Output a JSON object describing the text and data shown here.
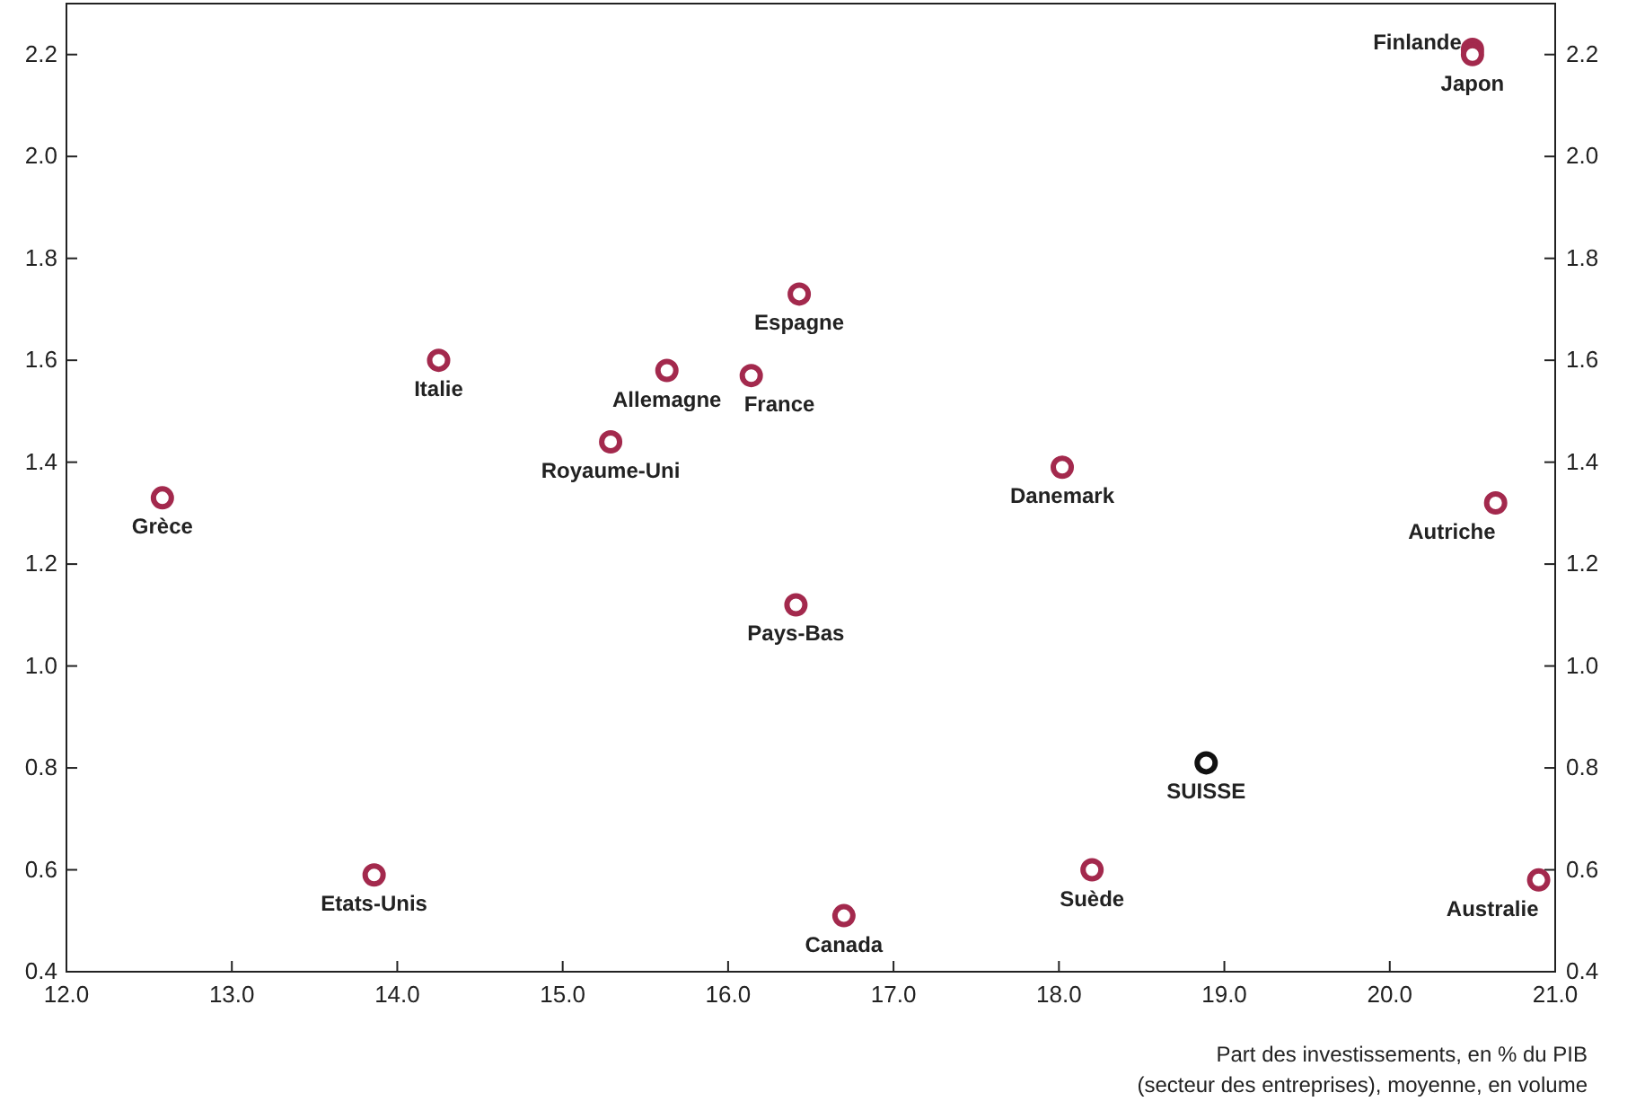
{
  "chart_data": {
    "type": "scatter",
    "xlabel": "Part des investissements, en % du PIB\n(secteur des entreprises), moyenne, en volume",
    "xlim": [
      12,
      21
    ],
    "xticks": [
      {
        "value": 12,
        "label": "12.0"
      },
      {
        "value": 13,
        "label": "13.0"
      },
      {
        "value": 14,
        "label": "14.0"
      },
      {
        "value": 15,
        "label": "15.0"
      },
      {
        "value": 16,
        "label": "16.0"
      },
      {
        "value": 17,
        "label": "17.0"
      },
      {
        "value": 18,
        "label": "18.0"
      },
      {
        "value": 19,
        "label": "19.0"
      },
      {
        "value": 20,
        "label": "20.0"
      },
      {
        "value": 21,
        "label": "21.0"
      }
    ],
    "ylim": [
      0.4,
      2.3
    ],
    "yticks": [
      0.4,
      0.6,
      0.8,
      {
        "value": 1,
        "label": "1.0"
      },
      1.2,
      1.4,
      1.6,
      1.8,
      {
        "value": 2,
        "label": "2.0"
      },
      2.2
    ],
    "y2lim": [
      0.4,
      2.3
    ],
    "y2ticks": [
      0.4,
      0.6,
      0.8,
      {
        "value": 1,
        "label": "1.0"
      },
      1.2,
      1.4,
      1.6,
      1.8,
      {
        "value": 2,
        "label": "2.0"
      },
      2.2
    ],
    "marker": "circle",
    "grid": false,
    "series": [
      {
        "color": "#a3294d",
        "x": [
          20.5,
          20.5,
          12.58,
          14.25,
          15.63,
          15.29,
          16.43,
          16.14,
          16.41,
          18.02,
          20.64,
          13.86,
          16.7,
          18.2,
          20.9
        ],
        "values": [
          2.21,
          2.2,
          1.33,
          1.6,
          1.58,
          1.44,
          1.73,
          1.57,
          1.12,
          1.39,
          1.32,
          0.59,
          0.51,
          0.6,
          0.58
        ]
      },
      {
        "color": "#111111",
        "x": [
          18.89
        ],
        "values": [
          0.81
        ]
      }
    ],
    "annotations": [
      {
        "text": "Finlande",
        "x": 20.5,
        "y": 2.21
      },
      {
        "text": "Japon",
        "x": 20.5,
        "y": 2.2
      },
      {
        "text": "Grèce",
        "x": 12.58,
        "y": 1.33
      },
      {
        "text": "Italie",
        "x": 14.25,
        "y": 1.6
      },
      {
        "text": "Allemagne",
        "x": 15.63,
        "y": 1.58
      },
      {
        "text": "Royaume-Uni",
        "x": 15.29,
        "y": 1.44
      },
      {
        "text": "Espagne",
        "x": 16.43,
        "y": 1.73
      },
      {
        "text": "France",
        "x": 16.14,
        "y": 1.57
      },
      {
        "text": "Pays-Bas",
        "x": 16.41,
        "y": 1.12
      },
      {
        "text": "Danemark",
        "x": 18.02,
        "y": 1.39
      },
      {
        "text": "Autriche",
        "x": 20.64,
        "y": 1.32
      },
      {
        "text": "Etats-Unis",
        "x": 13.86,
        "y": 0.59
      },
      {
        "text": "Canada",
        "x": 16.7,
        "y": 0.51
      },
      {
        "text": "Suède",
        "x": 18.2,
        "y": 0.6
      },
      {
        "text": "Australie",
        "x": 20.9,
        "y": 0.58
      },
      {
        "text": "SUISSE",
        "x": 18.89,
        "y": 0.81
      }
    ]
  }
}
